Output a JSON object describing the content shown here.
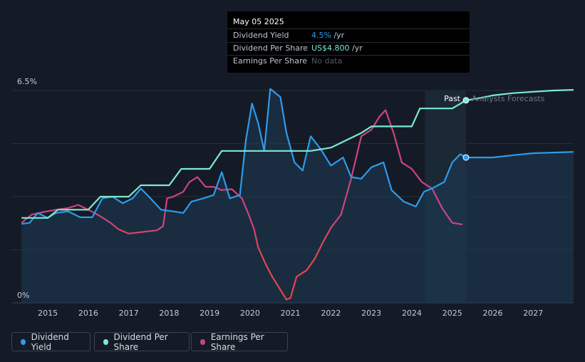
{
  "tooltip": {
    "date": "May 05 2025",
    "rows": [
      {
        "label": "Dividend Yield",
        "value": "4.5%",
        "unit": " /yr",
        "color": "#2e9bea"
      },
      {
        "label": "Dividend Per Share",
        "value": "US$4.800",
        "unit": " /yr",
        "color": "#7ee9d2"
      },
      {
        "label": "Earnings Per Share",
        "value": "No data",
        "unit": "",
        "color": "#555b66"
      }
    ]
  },
  "legend": [
    {
      "label": "Dividend Yield",
      "color": "#2e9bea"
    },
    {
      "label": "Dividend Per Share",
      "color": "#7ee9d2"
    },
    {
      "label": "Earnings Per Share",
      "color": "#c9457f"
    }
  ],
  "chart_data": {
    "type": "line",
    "y_top_label": "6.5%",
    "y_bottom_label": "0%",
    "ylim": [
      0,
      6.5
    ],
    "xlim": [
      2014.1,
      2028.0
    ],
    "x_ticks": [
      "2015",
      "2016",
      "2017",
      "2018",
      "2019",
      "2020",
      "2021",
      "2022",
      "2023",
      "2024",
      "2025",
      "2026",
      "2027"
    ],
    "past_label": "Past",
    "forecast_label": "Analysts Forecasts",
    "forecast_start": 2024.33,
    "current_date": 2025.34,
    "series": [
      {
        "name": "Dividend Yield",
        "color": "#2e9bea",
        "points": [
          [
            2014.35,
            2.42
          ],
          [
            2014.55,
            2.45
          ],
          [
            2014.75,
            2.75
          ],
          [
            2015.0,
            2.6
          ],
          [
            2015.2,
            2.75
          ],
          [
            2015.5,
            2.8
          ],
          [
            2015.8,
            2.62
          ],
          [
            2016.1,
            2.62
          ],
          [
            2016.35,
            3.2
          ],
          [
            2016.6,
            3.25
          ],
          [
            2016.85,
            3.05
          ],
          [
            2017.1,
            3.2
          ],
          [
            2017.3,
            3.5
          ],
          [
            2017.5,
            3.25
          ],
          [
            2017.8,
            2.85
          ],
          [
            2018.1,
            2.8
          ],
          [
            2018.35,
            2.75
          ],
          [
            2018.55,
            3.1
          ],
          [
            2018.85,
            3.2
          ],
          [
            2019.1,
            3.3
          ],
          [
            2019.3,
            4.0
          ],
          [
            2019.5,
            3.2
          ],
          [
            2019.75,
            3.3
          ],
          [
            2019.9,
            5.0
          ],
          [
            2020.05,
            6.1
          ],
          [
            2020.2,
            5.5
          ],
          [
            2020.35,
            4.65
          ],
          [
            2020.5,
            6.55
          ],
          [
            2020.75,
            6.3
          ],
          [
            2020.9,
            5.2
          ],
          [
            2021.1,
            4.3
          ],
          [
            2021.3,
            4.05
          ],
          [
            2021.5,
            5.1
          ],
          [
            2021.75,
            4.7
          ],
          [
            2022.0,
            4.2
          ],
          [
            2022.3,
            4.45
          ],
          [
            2022.5,
            3.85
          ],
          [
            2022.75,
            3.8
          ],
          [
            2023.0,
            4.15
          ],
          [
            2023.3,
            4.3
          ],
          [
            2023.5,
            3.45
          ],
          [
            2023.8,
            3.1
          ],
          [
            2024.1,
            2.95
          ],
          [
            2024.3,
            3.4
          ],
          [
            2024.5,
            3.5
          ],
          [
            2024.8,
            3.7
          ],
          [
            2025.0,
            4.3
          ],
          [
            2025.2,
            4.55
          ],
          [
            2025.34,
            4.45
          ],
          [
            2025.6,
            4.45
          ],
          [
            2026.0,
            4.45
          ],
          [
            2026.5,
            4.52
          ],
          [
            2027.0,
            4.58
          ],
          [
            2027.5,
            4.6
          ],
          [
            2028.0,
            4.62
          ]
        ]
      },
      {
        "name": "Dividend Per Share",
        "color": "#7ee9d2",
        "points": [
          [
            2014.35,
            2.6
          ],
          [
            2015.0,
            2.6
          ],
          [
            2015.25,
            2.85
          ],
          [
            2015.5,
            2.85
          ],
          [
            2016.0,
            2.85
          ],
          [
            2016.3,
            3.25
          ],
          [
            2016.5,
            3.25
          ],
          [
            2017.0,
            3.25
          ],
          [
            2017.3,
            3.6
          ],
          [
            2017.5,
            3.6
          ],
          [
            2018.0,
            3.6
          ],
          [
            2018.3,
            4.1
          ],
          [
            2018.5,
            4.1
          ],
          [
            2019.0,
            4.1
          ],
          [
            2019.3,
            4.65
          ],
          [
            2019.5,
            4.65
          ],
          [
            2021.0,
            4.65
          ],
          [
            2021.5,
            4.65
          ],
          [
            2022.0,
            4.75
          ],
          [
            2022.5,
            5.05
          ],
          [
            2022.75,
            5.2
          ],
          [
            2023.0,
            5.4
          ],
          [
            2023.5,
            5.4
          ],
          [
            2024.0,
            5.4
          ],
          [
            2024.2,
            5.95
          ],
          [
            2024.5,
            5.95
          ],
          [
            2025.0,
            5.95
          ],
          [
            2025.34,
            6.2
          ],
          [
            2025.6,
            6.25
          ],
          [
            2026.0,
            6.35
          ],
          [
            2026.5,
            6.42
          ],
          [
            2027.0,
            6.46
          ],
          [
            2027.5,
            6.5
          ],
          [
            2028.0,
            6.52
          ]
        ]
      },
      {
        "name": "Earnings Per Share",
        "color": "#c9457f",
        "color_low": "#e04848",
        "points": [
          [
            2014.35,
            2.45
          ],
          [
            2014.6,
            2.7
          ],
          [
            2014.9,
            2.78
          ],
          [
            2015.2,
            2.85
          ],
          [
            2015.5,
            2.9
          ],
          [
            2015.75,
            3.0
          ],
          [
            2016.0,
            2.85
          ],
          [
            2016.3,
            2.65
          ],
          [
            2016.55,
            2.45
          ],
          [
            2016.75,
            2.25
          ],
          [
            2017.0,
            2.12
          ],
          [
            2017.4,
            2.18
          ],
          [
            2017.7,
            2.22
          ],
          [
            2017.85,
            2.35
          ],
          [
            2017.95,
            3.2
          ],
          [
            2018.1,
            3.25
          ],
          [
            2018.35,
            3.4
          ],
          [
            2018.5,
            3.7
          ],
          [
            2018.7,
            3.85
          ],
          [
            2018.9,
            3.55
          ],
          [
            2019.1,
            3.55
          ],
          [
            2019.3,
            3.45
          ],
          [
            2019.55,
            3.48
          ],
          [
            2019.8,
            3.2
          ],
          [
            2019.95,
            2.75
          ],
          [
            2020.1,
            2.25
          ],
          [
            2020.2,
            1.7
          ],
          [
            2020.4,
            1.15
          ],
          [
            2020.55,
            0.8
          ],
          [
            2020.75,
            0.4
          ],
          [
            2020.9,
            0.1
          ],
          [
            2021.0,
            0.15
          ],
          [
            2021.15,
            0.8
          ],
          [
            2021.4,
            1.0
          ],
          [
            2021.6,
            1.35
          ],
          [
            2021.8,
            1.85
          ],
          [
            2022.0,
            2.3
          ],
          [
            2022.25,
            2.7
          ],
          [
            2022.5,
            3.8
          ],
          [
            2022.75,
            5.1
          ],
          [
            2023.0,
            5.3
          ],
          [
            2023.2,
            5.7
          ],
          [
            2023.35,
            5.9
          ],
          [
            2023.55,
            5.2
          ],
          [
            2023.75,
            4.3
          ],
          [
            2024.0,
            4.1
          ],
          [
            2024.25,
            3.7
          ],
          [
            2024.5,
            3.5
          ],
          [
            2024.75,
            2.9
          ],
          [
            2025.0,
            2.45
          ],
          [
            2025.25,
            2.4
          ]
        ]
      }
    ]
  }
}
